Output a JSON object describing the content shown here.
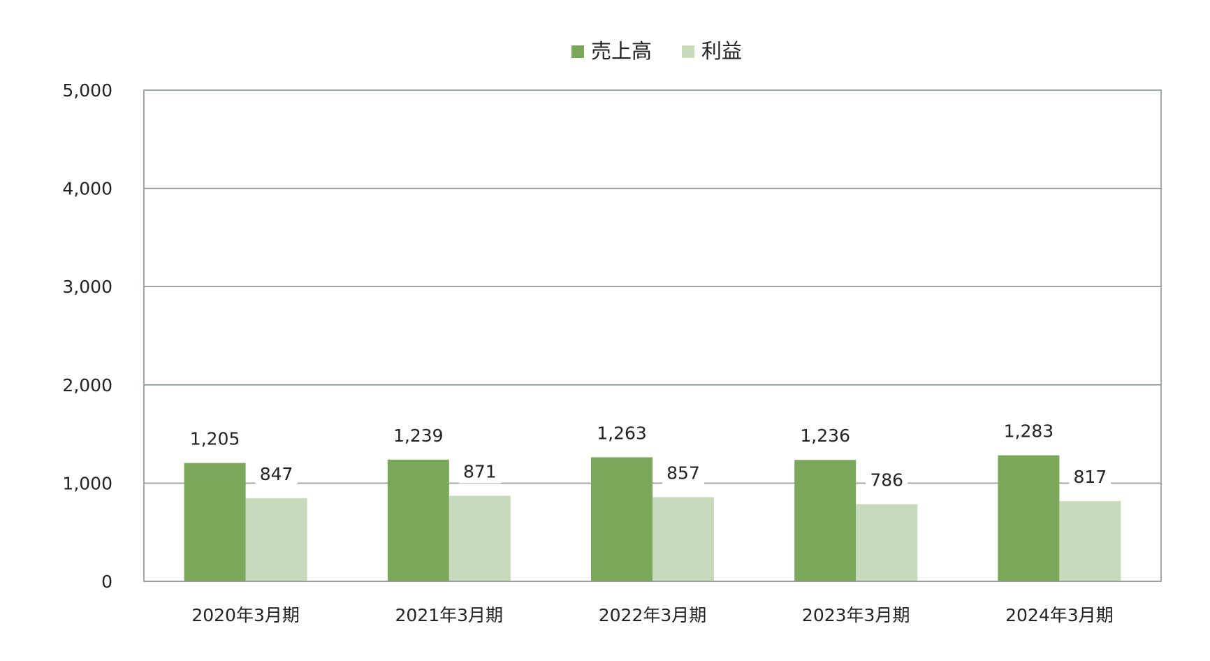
{
  "chart_data": {
    "type": "bar",
    "title": "",
    "xlabel": "",
    "ylabel": "",
    "categories": [
      "2020年3月期",
      "2021年3月期",
      "2022年3月期",
      "2023年3月期",
      "2024年3月期"
    ],
    "series": [
      {
        "name": "売上高",
        "color": "#7aa75a",
        "values": [
          1205,
          1239,
          1263,
          1236,
          1283
        ]
      },
      {
        "name": "利益",
        "color": "#c8dabc",
        "values": [
          847,
          871,
          857,
          786,
          817
        ]
      }
    ],
    "value_labels": [
      [
        "1,205",
        "1,239",
        "1,263",
        "1,236",
        "1,283"
      ],
      [
        "847",
        "871",
        "857",
        "786",
        "817"
      ]
    ],
    "ylim": [
      0,
      5000
    ],
    "yticks": [
      0,
      1000,
      2000,
      3000,
      4000,
      5000
    ],
    "ytick_labels": [
      "0",
      "1,000",
      "2,000",
      "3,000",
      "4,000",
      "5,000"
    ],
    "grid": true,
    "legend_position": "top-center",
    "colors": {
      "grid": "#8c9690",
      "axis": "#8c9690",
      "text": "#222222"
    }
  }
}
